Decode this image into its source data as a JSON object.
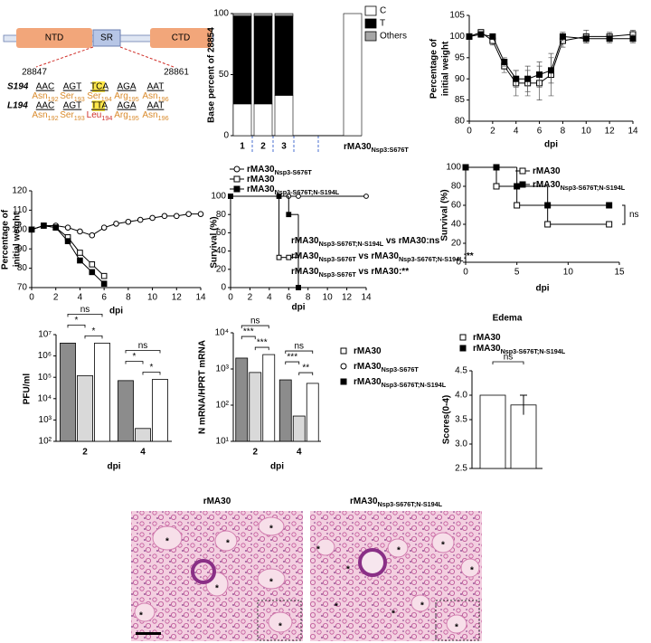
{
  "diagram": {
    "domains": [
      "NTD",
      "SR",
      "CTD"
    ],
    "positions": [
      "28847",
      "28861"
    ],
    "rows": [
      {
        "label": "S194",
        "codons": [
          "AAC",
          "AGT",
          "TCA",
          "AGA",
          "AAT"
        ],
        "residues": [
          [
            "Asn",
            "192"
          ],
          [
            "Ser",
            "193"
          ],
          [
            "Ser",
            "194"
          ],
          [
            "Arg",
            "195"
          ],
          [
            "Asn",
            "196"
          ]
        ]
      },
      {
        "label": "L194",
        "codons": [
          "AAC",
          "AGT",
          "TTA",
          "AGA",
          "AAT"
        ],
        "residues": [
          [
            "Asn",
            "192"
          ],
          [
            "Ser",
            "193"
          ],
          [
            "Leu",
            "194"
          ],
          [
            "Arg",
            "195"
          ],
          [
            "Asn",
            "196"
          ]
        ]
      }
    ]
  },
  "chart_data": [
    {
      "type": "bar",
      "stacked": true,
      "ylabel": "Base percent of 28854",
      "categories": [
        "1",
        "2",
        "3",
        [
          "rMA30",
          "Nsp3:S676T"
        ]
      ],
      "series": [
        {
          "name": "C",
          "color": "#ffffff",
          "values": [
            26,
            26,
            33,
            100
          ]
        },
        {
          "name": "T",
          "color": "#000000",
          "values": [
            72,
            72,
            65,
            0
          ]
        },
        {
          "name": "Others",
          "color": "#a6a6a6",
          "values": [
            2,
            2,
            2,
            0
          ]
        }
      ],
      "ylim": [
        0,
        100
      ],
      "yticks": [
        0,
        50,
        100
      ]
    },
    {
      "type": "line",
      "ylabel": [
        "Percentage of",
        "initial weight"
      ],
      "xlabel": "dpi",
      "x": [
        0,
        1,
        2,
        3,
        4,
        5,
        6,
        7,
        8,
        10,
        12,
        14
      ],
      "series": [
        {
          "color": "#000000",
          "marker": "square-open",
          "values": [
            100,
            101,
            99,
            93,
            89,
            89,
            89,
            91,
            99,
            100,
            100,
            100.5
          ],
          "errors": [
            0.5,
            0.5,
            1,
            1.5,
            3,
            3,
            4,
            5,
            1.5,
            1.5,
            1,
            1
          ]
        },
        {
          "color": "#000000",
          "marker": "square",
          "values": [
            100,
            100.5,
            100,
            94,
            90,
            90,
            91,
            92,
            100,
            99.5,
            99.5,
            99.5
          ],
          "errors": [
            0.5,
            0.5,
            0.5,
            1,
            2,
            3,
            3,
            3,
            1,
            1,
            1,
            1
          ]
        }
      ],
      "xlim": [
        0,
        14
      ],
      "xticks": [
        0,
        2,
        4,
        6,
        8,
        10,
        12,
        14
      ],
      "ylim": [
        80,
        105
      ],
      "yticks": [
        80,
        85,
        90,
        95,
        100,
        105
      ]
    },
    {
      "type": "line",
      "ylabel": [
        "Percentage of",
        "initial weight"
      ],
      "xlabel": "dpi",
      "x": [
        0,
        1,
        2,
        3,
        4,
        5,
        6,
        7,
        8,
        9,
        10,
        11,
        12,
        13,
        14
      ],
      "series": [
        {
          "color": "#000000",
          "marker": "circle-open",
          "values": [
            100,
            102,
            102,
            101,
            99,
            97,
            101,
            103,
            104,
            105,
            106,
            107,
            107,
            108,
            108
          ]
        },
        {
          "color": "#000000",
          "marker": "square-open",
          "values": [
            100,
            102,
            101,
            96,
            88,
            82,
            76,
            null,
            null,
            null,
            null,
            null,
            null,
            null,
            null
          ]
        },
        {
          "color": "#000000",
          "marker": "square",
          "values": [
            100,
            102,
            101,
            94,
            84,
            78,
            72,
            null,
            null,
            null,
            null,
            null,
            null,
            null,
            null
          ]
        }
      ],
      "xlim": [
        0,
        14
      ],
      "xticks": [
        0,
        2,
        4,
        6,
        8,
        10,
        12,
        14
      ],
      "ylim": [
        70,
        120
      ],
      "yticks": [
        70,
        80,
        90,
        100,
        110,
        120
      ]
    },
    {
      "type": "line",
      "step": true,
      "ylabel": "Survival (%)",
      "xlabel": "dpi",
      "x": [
        0,
        5,
        6,
        7,
        14
      ],
      "series": [
        {
          "name": [
            "rMA30",
            "Nsp3-S676T"
          ],
          "color": "#000000",
          "marker": "circle-open",
          "values": [
            100,
            100,
            100,
            100,
            100
          ]
        },
        {
          "name": [
            "rMA30"
          ],
          "color": "#000000",
          "marker": "square-open",
          "values": [
            100,
            33,
            33,
            0,
            null
          ]
        },
        {
          "name": [
            "rMA30",
            "Nsp3-S676T;N-S194L"
          ],
          "color": "#000000",
          "marker": "square",
          "values": [
            100,
            100,
            80,
            0,
            null
          ]
        }
      ],
      "annotations": [
        [
          "rMA30",
          "Nsp3-S676T;N-S194L",
          " vs rMA30:ns"
        ],
        [
          "rMA30",
          "Nsp3-S676T",
          " vs rMA30",
          "Nsp3-S676T;N-S194L",
          ":**"
        ],
        [
          "rMA30",
          "Nsp3-S676T",
          " vs rMA30:**"
        ]
      ],
      "xlim": [
        0,
        14
      ],
      "xticks": [
        0,
        2,
        4,
        6,
        8,
        10,
        12,
        14
      ],
      "ylim": [
        0,
        100
      ],
      "yticks": [
        0,
        20,
        40,
        60,
        80,
        100
      ]
    },
    {
      "type": "line",
      "step": true,
      "ylabel": "Survival (%)",
      "xlabel": "dpi",
      "x": [
        0,
        3,
        5,
        8,
        14
      ],
      "series": [
        {
          "name": [
            "rMA30"
          ],
          "color": "#000000",
          "marker": "square-open",
          "values": [
            100,
            80,
            60,
            40,
            40
          ]
        },
        {
          "name": [
            "rMA30",
            "Nsp3-S676T;N-S194L"
          ],
          "color": "#000000",
          "marker": "square",
          "values": [
            100,
            100,
            80,
            60,
            60
          ]
        }
      ],
      "annotations": [
        "ns"
      ],
      "xlim": [
        0,
        15
      ],
      "xticks": [
        0,
        5,
        10,
        15
      ],
      "ylim": [
        0,
        100
      ],
      "yticks": [
        0,
        20,
        40,
        60,
        80,
        100
      ]
    },
    {
      "type": "bar",
      "log": true,
      "ylabel": "PFU/ml",
      "xlabel": "dpi",
      "categories": [
        "2",
        "4"
      ],
      "series": [
        {
          "color": "#8c8c8c",
          "values": [
            4000000,
            70000
          ]
        },
        {
          "color": "#d9d9d9",
          "values": [
            120000,
            400
          ]
        },
        {
          "color": "#ffffff",
          "values": [
            4000000,
            80000
          ]
        }
      ],
      "annotations": [
        [
          "ns",
          "*",
          "*"
        ],
        [
          "ns",
          "*",
          "*"
        ]
      ],
      "ylim": [
        100,
        10000000
      ],
      "yticks": [
        {
          "value": 100,
          "label": "10²"
        },
        {
          "value": 1000,
          "label": "10³"
        },
        {
          "value": 10000,
          "label": "10⁴"
        },
        {
          "value": 100000,
          "label": "10⁵"
        },
        {
          "value": 1000000,
          "label": "10⁶"
        },
        {
          "value": 10000000,
          "label": "10⁷"
        }
      ]
    },
    {
      "type": "bar",
      "log": true,
      "ylabel": "N mRNA/HPRT mRNA",
      "xlabel": "dpi",
      "categories": [
        "2",
        "4"
      ],
      "series": [
        {
          "name": [
            "rMA30"
          ],
          "marker": "square-open",
          "color": "#8c8c8c",
          "values": [
            2000,
            500
          ]
        },
        {
          "name": [
            "rMA30",
            "Nsp3-S676T"
          ],
          "marker": "circle-open",
          "color": "#d9d9d9",
          "values": [
            800,
            50
          ]
        },
        {
          "name": [
            "rMA30",
            "Nsp3-S676T;N-S194L"
          ],
          "marker": "square",
          "color": "#ffffff",
          "values": [
            2500,
            400
          ]
        }
      ],
      "annotations": [
        [
          "ns",
          "***",
          "***"
        ],
        [
          "ns",
          "***",
          "**"
        ]
      ],
      "ylim": [
        10,
        10000
      ],
      "yticks": [
        {
          "value": 10,
          "label": "10¹"
        },
        {
          "value": 100,
          "label": "10²"
        },
        {
          "value": 1000,
          "label": "10³"
        },
        {
          "value": 10000,
          "label": "10⁴"
        }
      ]
    },
    {
      "type": "bar",
      "title": "Edema",
      "ylabel": "Scores(0-4)",
      "series": [
        {
          "name": [
            "rMA30"
          ],
          "marker": "square-open",
          "color": "#ffffff",
          "values": [
            4
          ]
        },
        {
          "name": [
            "rMA30",
            "Nsp3-S676T;N-S194L"
          ],
          "marker": "square",
          "color": "#ffffff",
          "values": [
            3.8
          ],
          "errors": [
            0.2
          ]
        }
      ],
      "annotations": [
        "ns"
      ],
      "ylim": [
        2.5,
        4.5
      ],
      "yticks": [
        2.5,
        {
          "value": 3,
          "label": "3.0"
        },
        3.5,
        {
          "value": 4,
          "label": "4.0"
        },
        4.5
      ]
    }
  ],
  "histology": {
    "titles": [
      [
        "rMA30"
      ],
      [
        "rMA30",
        "Nsp3-S676T;N-S194L"
      ]
    ],
    "marker": "*"
  }
}
